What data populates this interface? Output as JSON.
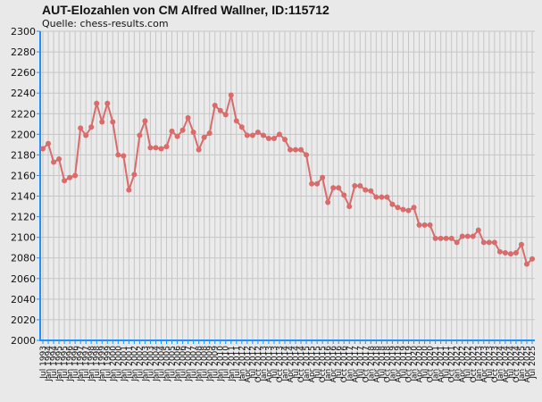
{
  "chart_data": {
    "type": "line",
    "title": "AUT-Elozahlen von CM Alfred Wallner, ID:115712",
    "subtitle": "Quelle: chess-results.com",
    "categories": [
      "Jul 1993",
      "Jan 1994",
      "Jul 1994",
      "Jan 1995",
      "Jul 1995",
      "Jan 1996",
      "Jul 1996",
      "Jan 1997",
      "Jul 1997",
      "Jan 1998",
      "Jul 1998",
      "Jan 1999",
      "Jul 1999",
      "Jan 2000",
      "Jul 2000",
      "Jan 2001",
      "Jul 2001",
      "Jan 2002",
      "Jul 2002",
      "Jan 2003",
      "Jul 2003",
      "Jan 2004",
      "Jul 2004",
      "Jan 2005",
      "Jul 2005",
      "Jan 2006",
      "Jul 2006",
      "Jan 2007",
      "Jul 2007",
      "Jan 2008",
      "Jul 2008",
      "Jan 2009",
      "Jul 2009",
      "Jan 2010",
      "Jul 2010",
      "Jan 2011",
      "Jul 2011",
      "Jan 2012",
      "Apr 2012",
      "Jul 2012",
      "Oct 2012",
      "Jan 2013",
      "Apr 2013",
      "Jul 2013",
      "Oct 2013",
      "Jan 2014",
      "Apr 2014",
      "Jul 2014",
      "Oct 2014",
      "Jan 2015",
      "Apr 2015",
      "Jul 2015",
      "Oct 2015",
      "Jan 2016",
      "Apr 2016",
      "Jul 2016",
      "Oct 2016",
      "Jan 2017",
      "Apr 2017",
      "Jul 2017",
      "Oct 2017",
      "Jan 2018",
      "Apr 2018",
      "Jul 2018",
      "Oct 2018",
      "Jan 2019",
      "Apr 2019",
      "Jul 2019",
      "Oct 2019",
      "Jan 2020",
      "Apr 2020",
      "Jul 2020",
      "Oct 2020",
      "Jan 2021",
      "Apr 2021",
      "Jul 2021",
      "Oct 2021",
      "Jan 2022",
      "Apr 2022",
      "Jul 2022",
      "Oct 2022",
      "Jan 2023",
      "Apr 2023",
      "Jul 2023",
      "Oct 2023",
      "Jan 2024",
      "Apr 2024",
      "Jul 2024",
      "Oct 2024",
      "Jan 2025",
      "Apr 2025",
      "Jul 2025"
    ],
    "values": [
      2186,
      2191,
      2173,
      2176,
      2155,
      2158,
      2160,
      2206,
      2199,
      2207,
      2230,
      2212,
      2230,
      2212,
      2180,
      2179,
      2146,
      2161,
      2199,
      2213,
      2187,
      2187,
      2186,
      2188,
      2203,
      2198,
      2204,
      2216,
      2202,
      2185,
      2197,
      2201,
      2228,
      2223,
      2219,
      2238,
      2213,
      2207,
      2199,
      2199,
      2202,
      2199,
      2196,
      2196,
      2200,
      2195,
      2185,
      2185,
      2185,
      2180,
      2152,
      2152,
      2158,
      2134,
      2148,
      2148,
      2141,
      2130,
      2150,
      2150,
      2146,
      2145,
      2139,
      2139,
      2139,
      2132,
      2129,
      2127,
      2126,
      2129,
      2112,
      2112,
      2112,
      2099,
      2099,
      2099,
      2099,
      2095,
      2101,
      2101,
      2101,
      2107,
      2095,
      2095,
      2095,
      2086,
      2085,
      2084,
      2085,
      2093,
      2074,
      2079
    ],
    "color": "#d96b6b",
    "ylim": [
      2000,
      2300
    ],
    "yticks": [
      2000,
      2020,
      2040,
      2060,
      2080,
      2100,
      2120,
      2140,
      2160,
      2180,
      2200,
      2220,
      2240,
      2260,
      2280,
      2300
    ],
    "grid": true
  }
}
